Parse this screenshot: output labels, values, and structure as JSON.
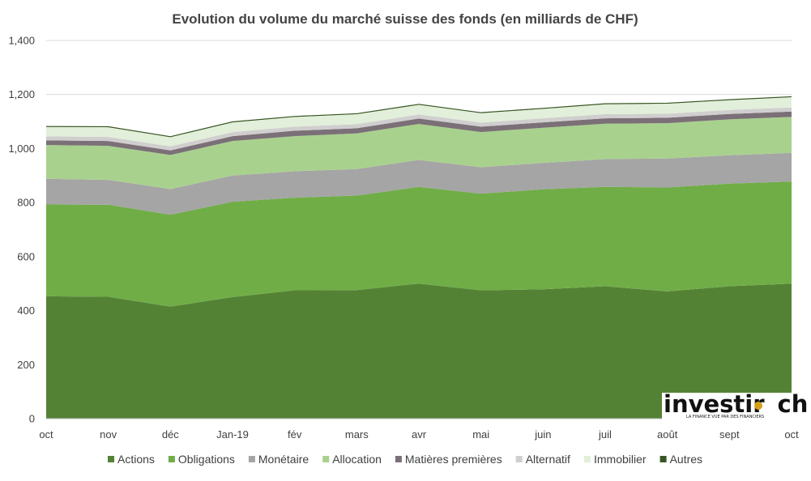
{
  "chart_data": {
    "type": "area",
    "stacked": true,
    "title": "Evolution du volume du marché suisse des fonds (en milliards de CHF)",
    "xlabel": "",
    "ylabel": "",
    "categories": [
      "oct",
      "nov",
      "déc",
      "Jan-19",
      "fév",
      "mars",
      "avr",
      "mai",
      "juin",
      "juil",
      "août",
      "sept",
      "oct"
    ],
    "ylim": [
      0,
      1400
    ],
    "yticks": [
      0,
      200,
      400,
      600,
      800,
      1000,
      1200,
      1400
    ],
    "ytick_labels": [
      "0",
      "200",
      "400",
      "600",
      "800",
      "1,000",
      "1,200",
      "1,400"
    ],
    "grid": true,
    "legend_position": "bottom",
    "series": [
      {
        "name": "Actions",
        "color": "#548235",
        "values": [
          453,
          451,
          415,
          450,
          475,
          476,
          500,
          475,
          479,
          490,
          471,
          490,
          500
        ]
      },
      {
        "name": "Obligations",
        "color": "#70ad47",
        "values": [
          340,
          341,
          340,
          353,
          343,
          350,
          358,
          358,
          370,
          368,
          385,
          380,
          378
        ]
      },
      {
        "name": "Monétaire",
        "color": "#a5a5a5",
        "values": [
          95,
          92,
          95,
          97,
          98,
          98,
          100,
          98,
          98,
          103,
          107,
          105,
          106
        ]
      },
      {
        "name": "Allocation",
        "color": "#a9d18e",
        "values": [
          125,
          126,
          126,
          128,
          130,
          132,
          133,
          130,
          130,
          131,
          131,
          133,
          133
        ]
      },
      {
        "name": "Matières premières",
        "color": "#7b7077",
        "values": [
          17,
          18,
          17,
          18,
          20,
          19,
          20,
          20,
          20,
          20,
          20,
          20,
          20
        ]
      },
      {
        "name": "Alternatif",
        "color": "#d0cece",
        "values": [
          15,
          15,
          15,
          15,
          15,
          15,
          15,
          15,
          15,
          15,
          15,
          15,
          15
        ]
      },
      {
        "name": "Immobilier",
        "color": "#e2efda",
        "values": [
          35,
          36,
          34,
          36,
          36,
          37,
          36,
          35,
          35,
          37,
          37,
          36,
          38
        ]
      },
      {
        "name": "Autres",
        "color": "#375623",
        "values": [
          2,
          2,
          2,
          2,
          2,
          2,
          2,
          2,
          2,
          2,
          2,
          2,
          2
        ]
      }
    ]
  },
  "logo": {
    "text_before": "investir",
    "text_after": "ch",
    "tagline": "LA FINANCE VUE PAR DES FINANCIERS"
  }
}
